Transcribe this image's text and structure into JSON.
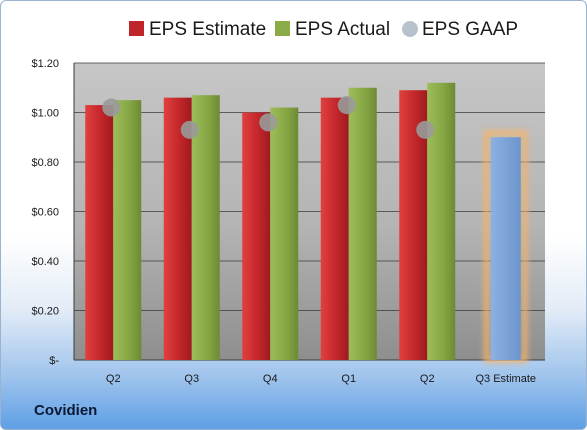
{
  "company": "Covidien",
  "chart_data": {
    "type": "bar",
    "categories": [
      "Q2",
      "Q3",
      "Q4",
      "Q1",
      "Q2",
      "Q3 Estimate"
    ],
    "series": [
      {
        "name": "EPS Estimate",
        "color": "#c0252a",
        "values": [
          1.03,
          1.06,
          1.0,
          1.06,
          1.09,
          null
        ]
      },
      {
        "name": "EPS Actual",
        "color": "#8aab48",
        "values": [
          1.05,
          1.07,
          1.02,
          1.1,
          1.12,
          null
        ]
      },
      {
        "name": "EPS GAAP",
        "color": "#b8c2cc",
        "values": [
          1.02,
          0.93,
          0.96,
          1.03,
          0.93,
          null
        ]
      }
    ],
    "forecast": {
      "category": "Q3 Estimate",
      "value": 0.9,
      "color": "#7ea6d8",
      "glow": "#f2b46a"
    },
    "y_ticks": [
      {
        "value": 0,
        "label": "$-"
      },
      {
        "value": 0.2,
        "label": "$0.20"
      },
      {
        "value": 0.4,
        "label": "$0.40"
      },
      {
        "value": 0.6,
        "label": "$0.60"
      },
      {
        "value": 0.8,
        "label": "$0.80"
      },
      {
        "value": 1.0,
        "label": "$1.00"
      },
      {
        "value": 1.2,
        "label": "$1.20"
      }
    ],
    "ylim": [
      0,
      1.2
    ],
    "grid": true,
    "legend_position": "top"
  }
}
